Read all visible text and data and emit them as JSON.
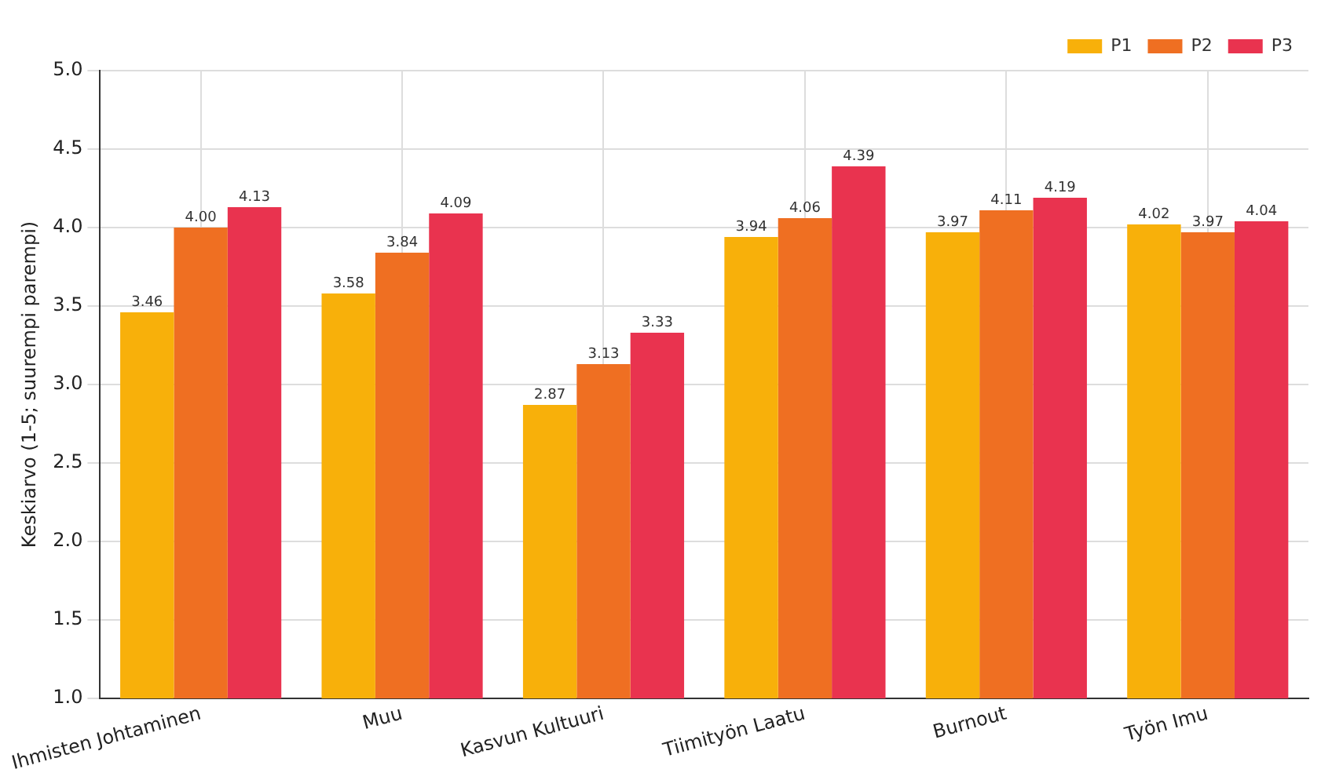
{
  "chart_data": {
    "type": "bar",
    "ylabel": "Keskiarvo (1-5; suurempi parempi)",
    "categories": [
      "Ihmisten Johtaminen",
      "Muu",
      "Kasvun Kultuuri",
      "Tiimityön Laatu",
      "Burnout",
      "Työn Imu"
    ],
    "series": [
      {
        "name": "P1",
        "color": "#f8b00a",
        "values": [
          3.46,
          3.58,
          2.87,
          3.94,
          3.97,
          4.02
        ],
        "value_labels": [
          "3.46",
          "3.58",
          "2.87",
          "3.94",
          "3.97",
          "4.02"
        ]
      },
      {
        "name": "P2",
        "color": "#ef6f22",
        "values": [
          4.0,
          3.84,
          3.13,
          4.06,
          4.11,
          3.97
        ],
        "value_labels": [
          "4.00",
          "3.84",
          "3.13",
          "4.06",
          "4.11",
          "3.97"
        ]
      },
      {
        "name": "P3",
        "color": "#e9334f",
        "values": [
          4.13,
          4.09,
          3.33,
          4.39,
          4.19,
          4.04
        ],
        "value_labels": [
          "4.13",
          "4.09",
          "3.33",
          "4.39",
          "4.19",
          "4.04"
        ]
      }
    ],
    "ylim": [
      1,
      5
    ],
    "yticks": [
      {
        "value": 1,
        "label": "1.0"
      },
      {
        "value": 1.5,
        "label": "1.5"
      },
      {
        "value": 2,
        "label": "2.0"
      },
      {
        "value": 2.5,
        "label": "2.5"
      },
      {
        "value": 3,
        "label": "3.0"
      },
      {
        "value": 3.5,
        "label": "3.5"
      },
      {
        "value": 4,
        "label": "4.0"
      },
      {
        "value": 4.5,
        "label": "4.5"
      },
      {
        "value": 5,
        "label": "5.0"
      }
    ],
    "grid": true,
    "legend": "top right"
  }
}
